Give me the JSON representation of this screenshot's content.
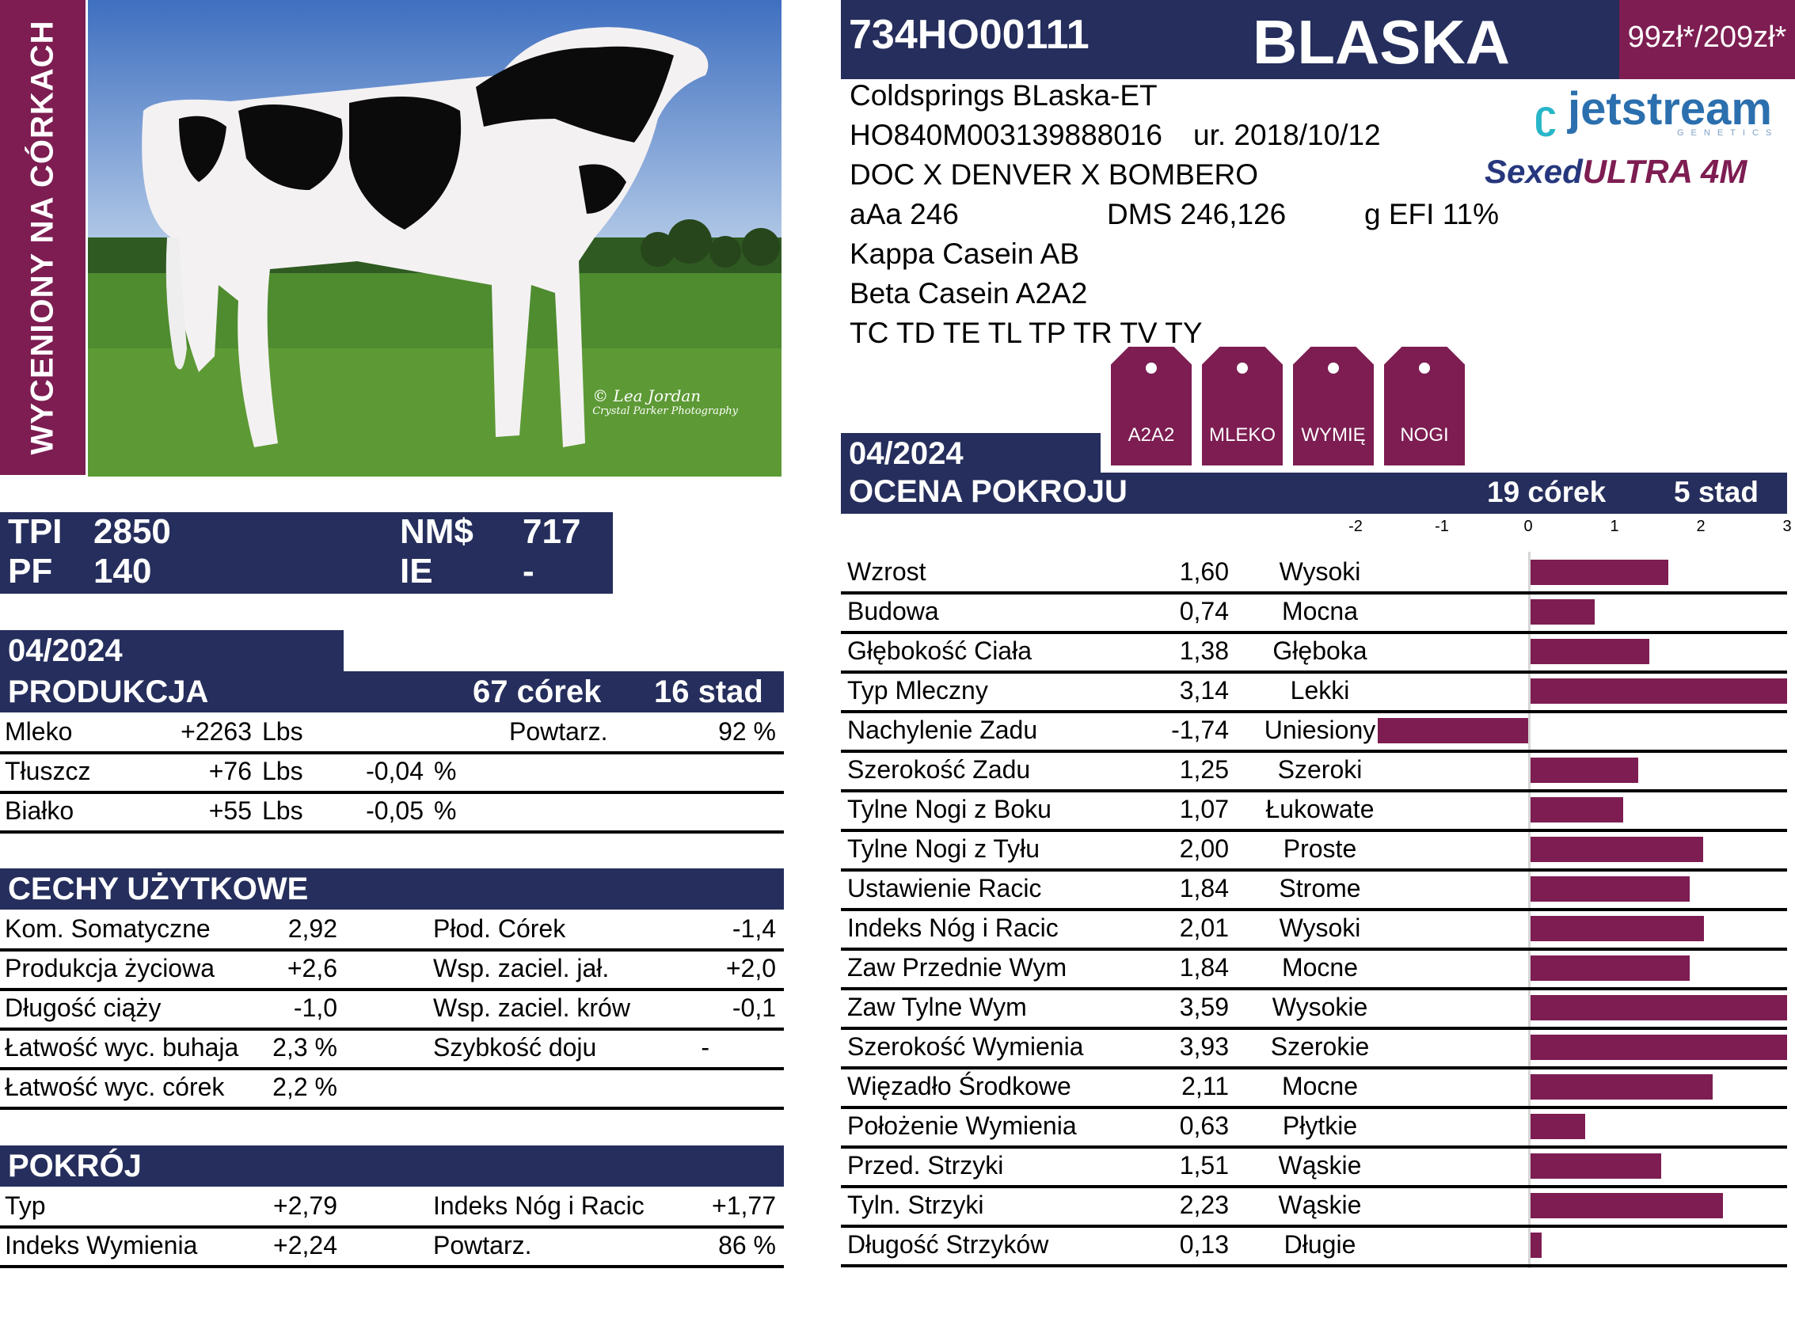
{
  "side_banner": "WYCENIONY NA CÓRKACH",
  "photo": {
    "credit": "© Lea Jordan",
    "credit2": "Crystal Parker Photography"
  },
  "header": {
    "code": "734HO00111",
    "name": "BLASKA",
    "price": "99zł*/209zł*"
  },
  "info": {
    "full_name": "Coldsprings BLaska-ET",
    "reg_id": "HO840M003139888016",
    "born": "ur. 2018/10/12",
    "pedigree": "DOC X DENVER X BOMBERO",
    "aaa": "aAa 246",
    "dms": "DMS 246,126",
    "gefi": "g EFI 11%",
    "kappa": "Kappa Casein AB",
    "beta": "Beta Casein A2A2",
    "haplotypes": "TC TD TE TL TP TR TV TY"
  },
  "logos": {
    "jetstream": "jetstream",
    "jetstream_sub": "GENETICS",
    "sexed_a": "Sexed",
    "sexed_b": "ULTRA 4M"
  },
  "tags": [
    "A2A2",
    "MLEKO",
    "WYMIĘ",
    "NOGI"
  ],
  "tpi": {
    "tpi_label": "TPI",
    "tpi_value": "2850",
    "nm_label": "NM$",
    "nm_value": "717",
    "pf_label": "PF",
    "pf_value": "140",
    "ie_label": "IE",
    "ie_value": "-"
  },
  "production": {
    "date": "04/2024",
    "title": "PRODUKCJA",
    "daughters": "67  córek",
    "herds": "16  stad",
    "rows": [
      {
        "name": "Mleko",
        "value": "+2263",
        "unit": "Lbs",
        "pct": "",
        "pct_unit": "",
        "extra_label": "Powtarz.",
        "extra_value": "92 %"
      },
      {
        "name": "Tłuszcz",
        "value": "+76",
        "unit": "Lbs",
        "pct": "-0,04",
        "pct_unit": "%",
        "extra_label": "",
        "extra_value": ""
      },
      {
        "name": "Białko",
        "value": "+55",
        "unit": "Lbs",
        "pct": "-0,05",
        "pct_unit": "%",
        "extra_label": "",
        "extra_value": ""
      }
    ]
  },
  "traits": {
    "title": "CECHY UŻYTKOWE",
    "rows": [
      {
        "l_name": "Kom. Somatyczne",
        "l_value": "2,92",
        "r_name": "Płod. Córek",
        "r_value": "-1,4"
      },
      {
        "l_name": "Produkcja życiowa",
        "l_value": "+2,6",
        "r_name": "Wsp. zaciel. jał.",
        "r_value": "+2,0"
      },
      {
        "l_name": "Długość ciąży",
        "l_value": "-1,0",
        "r_name": "Wsp. zaciel. krów",
        "r_value": "-0,1"
      },
      {
        "l_name": "Łatwość wyc. buhaja",
        "l_value": "2,3 %",
        "r_name": "Szybkość doju",
        "r_value": "-"
      },
      {
        "l_name": "Łatwość wyc. córek",
        "l_value": "2,2 %",
        "r_name": "",
        "r_value": ""
      }
    ]
  },
  "conformation": {
    "title": "POKRÓJ",
    "rows": [
      {
        "l_name": "Typ",
        "l_value": "+2,79",
        "r_name": "Indeks Nóg i Racic",
        "r_value": "+1,77"
      },
      {
        "l_name": "Indeks Wymienia",
        "l_value": "+2,24",
        "r_name": "Powtarz.",
        "r_value": "86 %"
      }
    ]
  },
  "type_eval": {
    "date": "04/2024",
    "title": "OCENA POKROJU",
    "daughters": "19  córek",
    "herds": "5  stad",
    "scale_ticks": [
      "-2",
      "-1",
      "0",
      "1",
      "2",
      "3"
    ]
  },
  "chart_data": {
    "type": "bar",
    "orientation": "horizontal",
    "xlim": [
      -2,
      3
    ],
    "categories": [
      "Wzrost",
      "Budowa",
      "Głębokość Ciała",
      "Typ Mleczny",
      "Nachylenie Zadu",
      "Szerokość Zadu",
      "Tylne Nogi z Boku",
      "Tylne Nogi z Tyłu",
      "Ustawienie Racic",
      "Indeks Nóg i Racic",
      "Zaw Przednie Wym",
      "Zaw Tylne Wym",
      "Szerokość Wymienia",
      "Więzadło Środkowe",
      "Położenie Wymienia",
      "Przed. Strzyki",
      "Tyln. Strzyki",
      "Długość Strzyków"
    ],
    "values": [
      1.6,
      0.74,
      1.38,
      3.14,
      -1.74,
      1.25,
      1.07,
      2.0,
      1.84,
      2.01,
      1.84,
      3.59,
      3.93,
      2.11,
      0.63,
      1.51,
      2.23,
      0.13
    ],
    "value_labels": [
      "1,60",
      "0,74",
      "1,38",
      "3,14",
      "-1,74",
      "1,25",
      "1,07",
      "2,00",
      "1,84",
      "2,01",
      "1,84",
      "3,59",
      "3,93",
      "2,11",
      "0,63",
      "1,51",
      "2,23",
      "0,13"
    ],
    "descriptors": [
      "Wysoki",
      "Mocna",
      "Głęboka",
      "Lekki",
      "Uniesiony",
      "Szeroki",
      "Łukowate",
      "Proste",
      "Strome",
      "Wysoki",
      "Mocne",
      "Wysokie",
      "Szerokie",
      "Mocne",
      "Płytkie",
      "Wąskie",
      "Wąskie",
      "Długie"
    ],
    "bar_color": "#7d1d52"
  },
  "colors": {
    "navy": "#252e5c",
    "wine": "#7d1d52"
  }
}
